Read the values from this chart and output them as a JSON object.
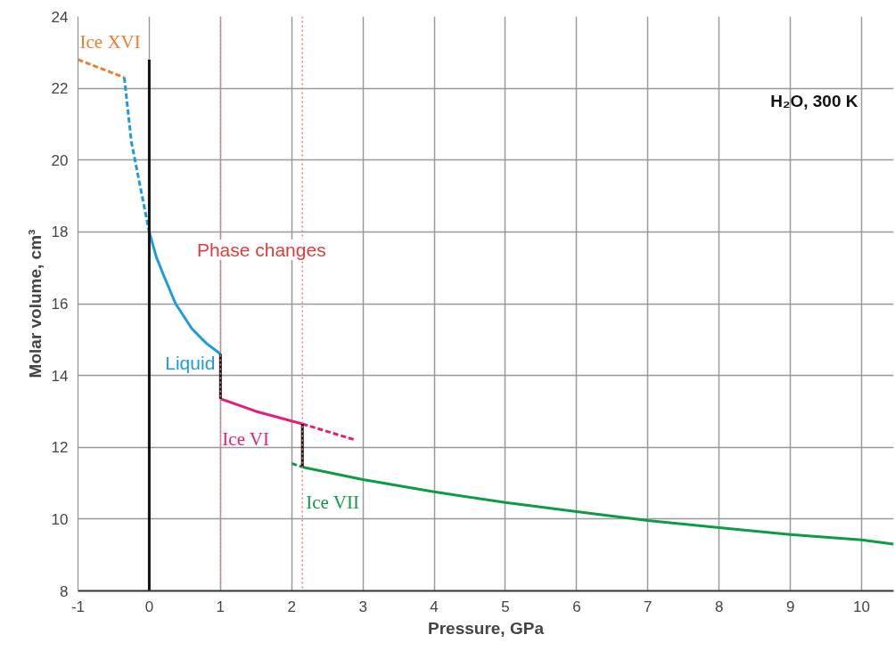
{
  "chart_data": {
    "type": "line",
    "xlabel": "Pressure, GPa",
    "ylabel": "Molar volume, cm³",
    "xlim": [
      -1,
      10.45
    ],
    "ylim": [
      8,
      24
    ],
    "xticks": [
      -1,
      0,
      1,
      2,
      3,
      4,
      5,
      6,
      7,
      8,
      9,
      10
    ],
    "yticks": [
      8,
      10,
      12,
      14,
      16,
      18,
      20,
      22,
      24
    ],
    "grid": true,
    "marker": "none",
    "series": [
      {
        "name": "Ice XVI",
        "color": "#ed7d31",
        "line_style": "dashed",
        "x": [
          -1,
          -0.35
        ],
        "values": [
          22.8,
          22.3
        ]
      },
      {
        "color": "#1e9be0",
        "line_style": "dashed",
        "x": [
          -0.35,
          -0.25,
          -0.1,
          0
        ],
        "values": [
          22.3,
          20.5,
          19.0,
          18.0
        ]
      },
      {
        "name": "Liquid",
        "color": "#1e9be0",
        "line_style": "solid",
        "x": [
          0,
          0.1,
          0.2,
          0.37,
          0.6,
          0.8,
          1
        ],
        "values": [
          18.0,
          17.3,
          16.8,
          16.0,
          15.3,
          14.9,
          14.6
        ]
      },
      {
        "name": "Ice VI",
        "color": "#e0207a",
        "line_style": "solid",
        "x": [
          1,
          1.5,
          2.15
        ],
        "values": [
          13.35,
          13.0,
          12.65
        ]
      },
      {
        "color": "#e0207a",
        "line_style": "dashed",
        "x": [
          2.15,
          2.9
        ],
        "values": [
          12.65,
          12.2
        ]
      },
      {
        "color": "#0f9a48",
        "line_style": "dashed",
        "x": [
          2.0,
          2.15
        ],
        "values": [
          11.55,
          11.45
        ]
      },
      {
        "name": "Ice VII",
        "color": "#0f9a48",
        "line_style": "solid",
        "x": [
          2.15,
          3,
          4,
          5,
          6,
          7,
          8,
          9,
          10,
          10.45
        ],
        "values": [
          11.45,
          11.1,
          10.76,
          10.46,
          10.21,
          9.96,
          9.76,
          9.57,
          9.42,
          9.3
        ]
      },
      {
        "color": "#111111",
        "line_style": "solid",
        "x": [
          0,
          0
        ],
        "values": [
          8,
          22.8
        ]
      },
      {
        "color": "#111111",
        "line_style": "solid",
        "x": [
          1,
          1
        ],
        "values": [
          14.6,
          13.35
        ]
      },
      {
        "color": "#111111",
        "line_style": "solid",
        "x": [
          2.15,
          2.15
        ],
        "values": [
          12.65,
          11.45
        ]
      }
    ],
    "ref_lines": [
      {
        "axis": "x",
        "value": 1,
        "color": "#f08080",
        "line_style": "dotted"
      },
      {
        "axis": "x",
        "value": 2.15,
        "color": "#f08080",
        "line_style": "dotted"
      }
    ],
    "annotations": [
      "Phase changes",
      "H₂O, 300 K"
    ]
  }
}
